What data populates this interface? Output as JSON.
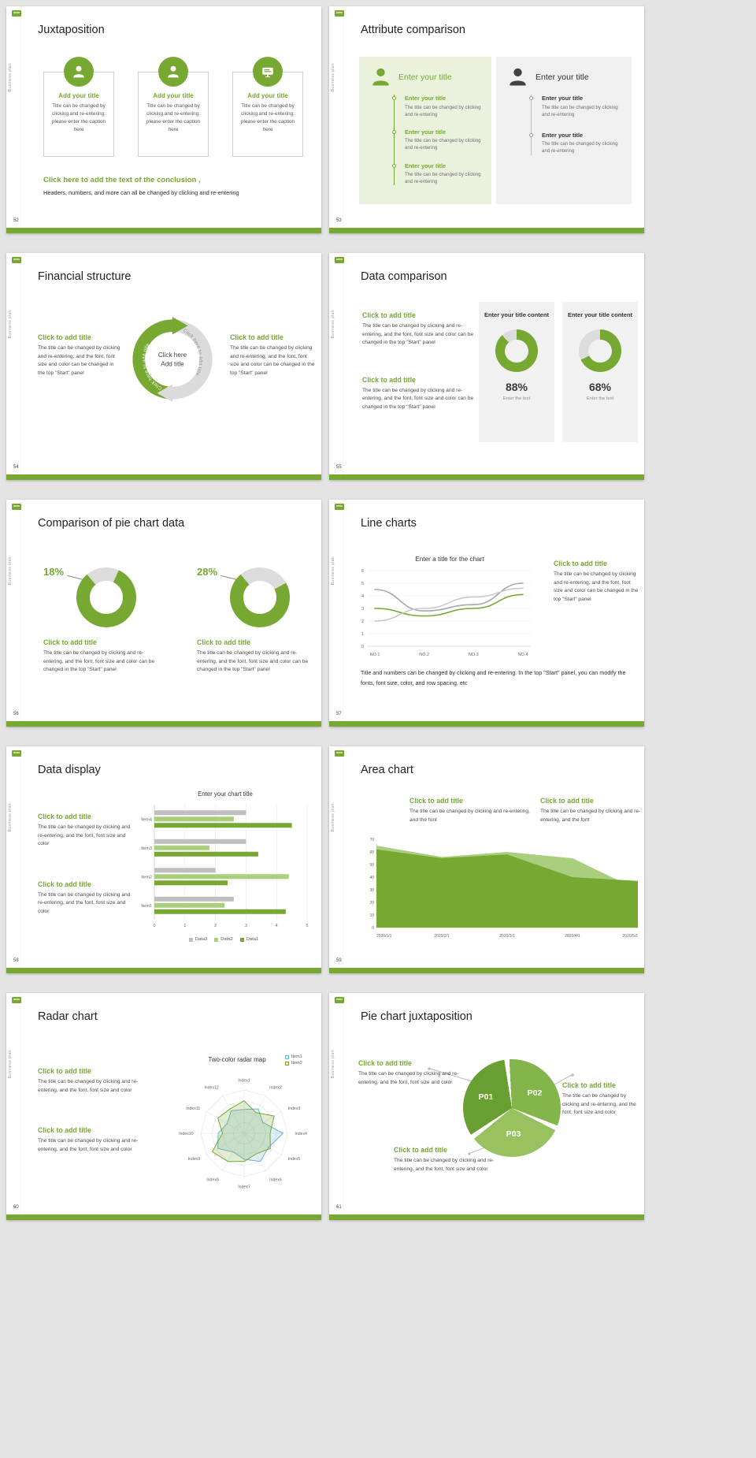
{
  "theme": {
    "green": "#76A832",
    "green_light": "#A9CE7D",
    "pale_green_bg": "#EAF2DE",
    "panel_gray_bg": "#F0F0F0",
    "series_gray": "#BFBFBF",
    "dark_icon": "#3E4347",
    "radar_blue": "#6FB3C9"
  },
  "chrome": {
    "sidebar_text": "Business plan"
  },
  "slides": {
    "s52": {
      "page": "52",
      "title": "Juxtaposition",
      "cards": [
        {
          "title": "Add your title",
          "body": "Title can be changed by clicking and re-entering, please enter the caption here"
        },
        {
          "title": "Add your title",
          "body": "Title can be changed by clicking and re-entering, please enter the caption here"
        },
        {
          "title": "Add your title",
          "body": "Title can be changed by clicking and re-entering, please enter the caption here"
        }
      ],
      "conclusion_title": "Click here to add the text of the conclusion ,",
      "conclusion_body": "Headers, numbers, and more can all be changed by clicking and re-entering"
    },
    "s53": {
      "page": "53",
      "title": "Attribute comparison",
      "left_panel": {
        "header": "Enter your title",
        "items": [
          {
            "title": "Enter your title",
            "body": "The title can be changed by clicking and re-entering"
          },
          {
            "title": "Enter your title",
            "body": "The title can be changed by clicking and re-entering"
          },
          {
            "title": "Enter your title",
            "body": "The title can be changed by clicking and re-entering"
          }
        ]
      },
      "right_panel": {
        "header": "Enter your title",
        "items": [
          {
            "title": "Enter your title",
            "body": "The title can be changed by clicking and re-entering"
          },
          {
            "title": "Enter your title",
            "body": "The title can be changed by clicking and re-entering"
          }
        ]
      }
    },
    "s54": {
      "page": "54",
      "title": "Financial structure",
      "left_block": {
        "title": "Click to add title",
        "body": "The title can be changed by clicking and re-entering, and the font, font size and color can be changed in the top \"Start\" panel"
      },
      "right_block": {
        "title": "Click to add title",
        "body": "The title can be changed by clicking and re-entering, and the font, font size and color can be changed in the top \"Start\" panel"
      },
      "center": {
        "line1": "Click here",
        "line2": "Add title",
        "arc_text_left": "Click here to add title",
        "arc_text_right": "Click here to add title"
      }
    },
    "s55": {
      "page": "55",
      "title": "Data comparison",
      "blocks": [
        {
          "title": "Click to add title",
          "body": "The title can be changed by clicking and re-entering, and the font, font size and color can be changed in the top \"Start\" panel"
        },
        {
          "title": "Click to add title",
          "body": "The title can be changed by clicking and re-entering, and the font, font size and color can be changed in the top \"Start\" panel"
        }
      ],
      "cards": [
        {
          "header": "Enter your title content",
          "percent_label": "88%",
          "percent_value": 88,
          "caption": "Enter the text"
        },
        {
          "header": "Enter your title content",
          "percent_label": "68%",
          "percent_value": 68,
          "caption": "Enter the text"
        }
      ]
    },
    "s56": {
      "page": "56",
      "title": "Comparison of pie chart data",
      "charts": [
        {
          "percent_label": "18%",
          "percent_value": 18,
          "title": "Click to add title",
          "body": "The title can be changed by clicking and re-entering, and the font, font size and color can be changed in the top \"Start\" panel"
        },
        {
          "percent_label": "28%",
          "percent_value": 28,
          "title": "Click to add title",
          "body": "The title can be changed by clicking and re-entering, and the font, font size and color can be changed in the top \"Start\" panel"
        }
      ]
    },
    "s57": {
      "page": "57",
      "title": "Line charts",
      "chart": {
        "type": "line",
        "title": "Enter a title for the chart",
        "x_labels": [
          "NO.1",
          "NO.2",
          "NO.3",
          "NO.4"
        ],
        "ymin": 0,
        "ymax": 6,
        "series": [
          {
            "name": "gray-1",
            "color": "#A8A8A8",
            "values": [
              4.5,
              2.8,
              3.3,
              5.0
            ]
          },
          {
            "name": "green",
            "color": "#76A832",
            "values": [
              3.0,
              2.4,
              3.0,
              4.1
            ]
          },
          {
            "name": "gray-2",
            "color": "#C9C9C9",
            "values": [
              2.0,
              3.0,
              3.9,
              4.6
            ]
          }
        ]
      },
      "block": {
        "title": "Click to add title",
        "body": "The title can be changed by clicking and re-entering, and the font, font size and color can be changed in the top \"Start\" panel"
      },
      "footer": "Title and numbers can be changed by clicking and re-entering. In the top \"Start\" panel, you can modify the fonts, font size, color, and row spacing, etc"
    },
    "s58": {
      "page": "58",
      "title": "Data display",
      "blocks": [
        {
          "title": "Click to add title",
          "body": "The title can be changed by clicking and re-entering, and the font, font size and color"
        },
        {
          "title": "Click to add title",
          "body": "The title can be changed by clicking and re-entering, and the font, font size and color"
        }
      ],
      "chart": {
        "type": "bar",
        "title": "Enter your chart title",
        "categories": [
          "Item1",
          "Item2",
          "Item3",
          "Item4"
        ],
        "xmax": 5,
        "series": [
          {
            "name": "Data1",
            "color": "#76A832",
            "values": [
              4.3,
              2.4,
              3.4,
              4.5
            ]
          },
          {
            "name": "Data2",
            "color": "#A9CE7D",
            "values": [
              2.3,
              4.4,
              1.8,
              2.6
            ]
          },
          {
            "name": "Data3",
            "color": "#BFBFBF",
            "values": [
              2.6,
              2.0,
              3.0,
              3.0
            ]
          }
        ],
        "legend_order": [
          "Data3",
          "Data2",
          "Data1"
        ]
      }
    },
    "s59": {
      "page": "59",
      "title": "Area chart",
      "blocks": [
        {
          "title": "Click to add title",
          "body": "The title can be changed by clicking and re-entering, and the font"
        },
        {
          "title": "Click to add title",
          "body": "The title can be changed by clicking and re-entering, and the font"
        }
      ],
      "chart": {
        "type": "area",
        "x_labels": [
          "2020/1/1",
          "2020/2/1",
          "2020/3/1",
          "2020/4/1",
          "2020/5/1"
        ],
        "ymin": 0,
        "ymax": 70,
        "ytick_step": 10,
        "series": [
          {
            "name": "light",
            "color": "#A9CE7D",
            "values": [
              65,
              56,
              60,
              55,
              30
            ]
          },
          {
            "name": "dark",
            "color": "#76A832",
            "values": [
              62,
              55,
              58,
              40,
              37
            ]
          }
        ]
      }
    },
    "s60": {
      "page": "60",
      "title": "Radar chart",
      "blocks": [
        {
          "title": "Click to add title",
          "body": "The title can be changed by clicking and re-entering, and the font, font size and color"
        },
        {
          "title": "Click to add title",
          "body": "The title can be changed by clicking and re-entering, and the font, font size and color"
        }
      ],
      "chart": {
        "type": "radar",
        "title": "Two-color radar map",
        "axes": [
          "Index1",
          "Index2",
          "Index3",
          "Index4",
          "Index5",
          "Index6",
          "Index7",
          "Index8",
          "Index9",
          "Index10",
          "Index11",
          "Index12"
        ],
        "series": [
          {
            "name": "Item1",
            "color": "#6FB3C9",
            "values": [
              0.55,
              0.65,
              0.5,
              0.9,
              0.65,
              0.75,
              0.6,
              0.5,
              0.7,
              0.6,
              0.45,
              0.6
            ]
          },
          {
            "name": "Item2",
            "color": "#76A832",
            "values": [
              0.75,
              0.55,
              0.8,
              0.6,
              0.7,
              0.55,
              0.65,
              0.75,
              0.85,
              0.5,
              0.7,
              0.65
            ]
          }
        ]
      }
    },
    "s61": {
      "page": "61",
      "title": "Pie chart juxtaposition",
      "pie": {
        "labels": [
          "P01",
          "P02",
          "P03"
        ],
        "colors": [
          "#699F31",
          "#83B54A",
          "#97C25F"
        ]
      },
      "left_block": {
        "title": "Click to add title",
        "body": "The title can be changed by clicking and re-entering, and the font, font size and color"
      },
      "right_block": {
        "title": "Click to add title",
        "body": "The title can be changed by clicking and re-entering, and the font, font size and color"
      },
      "bottom_block": {
        "title": "Click to add title",
        "body": "The title can be changed by clicking and re-entering, and the font, font size and color"
      }
    }
  }
}
